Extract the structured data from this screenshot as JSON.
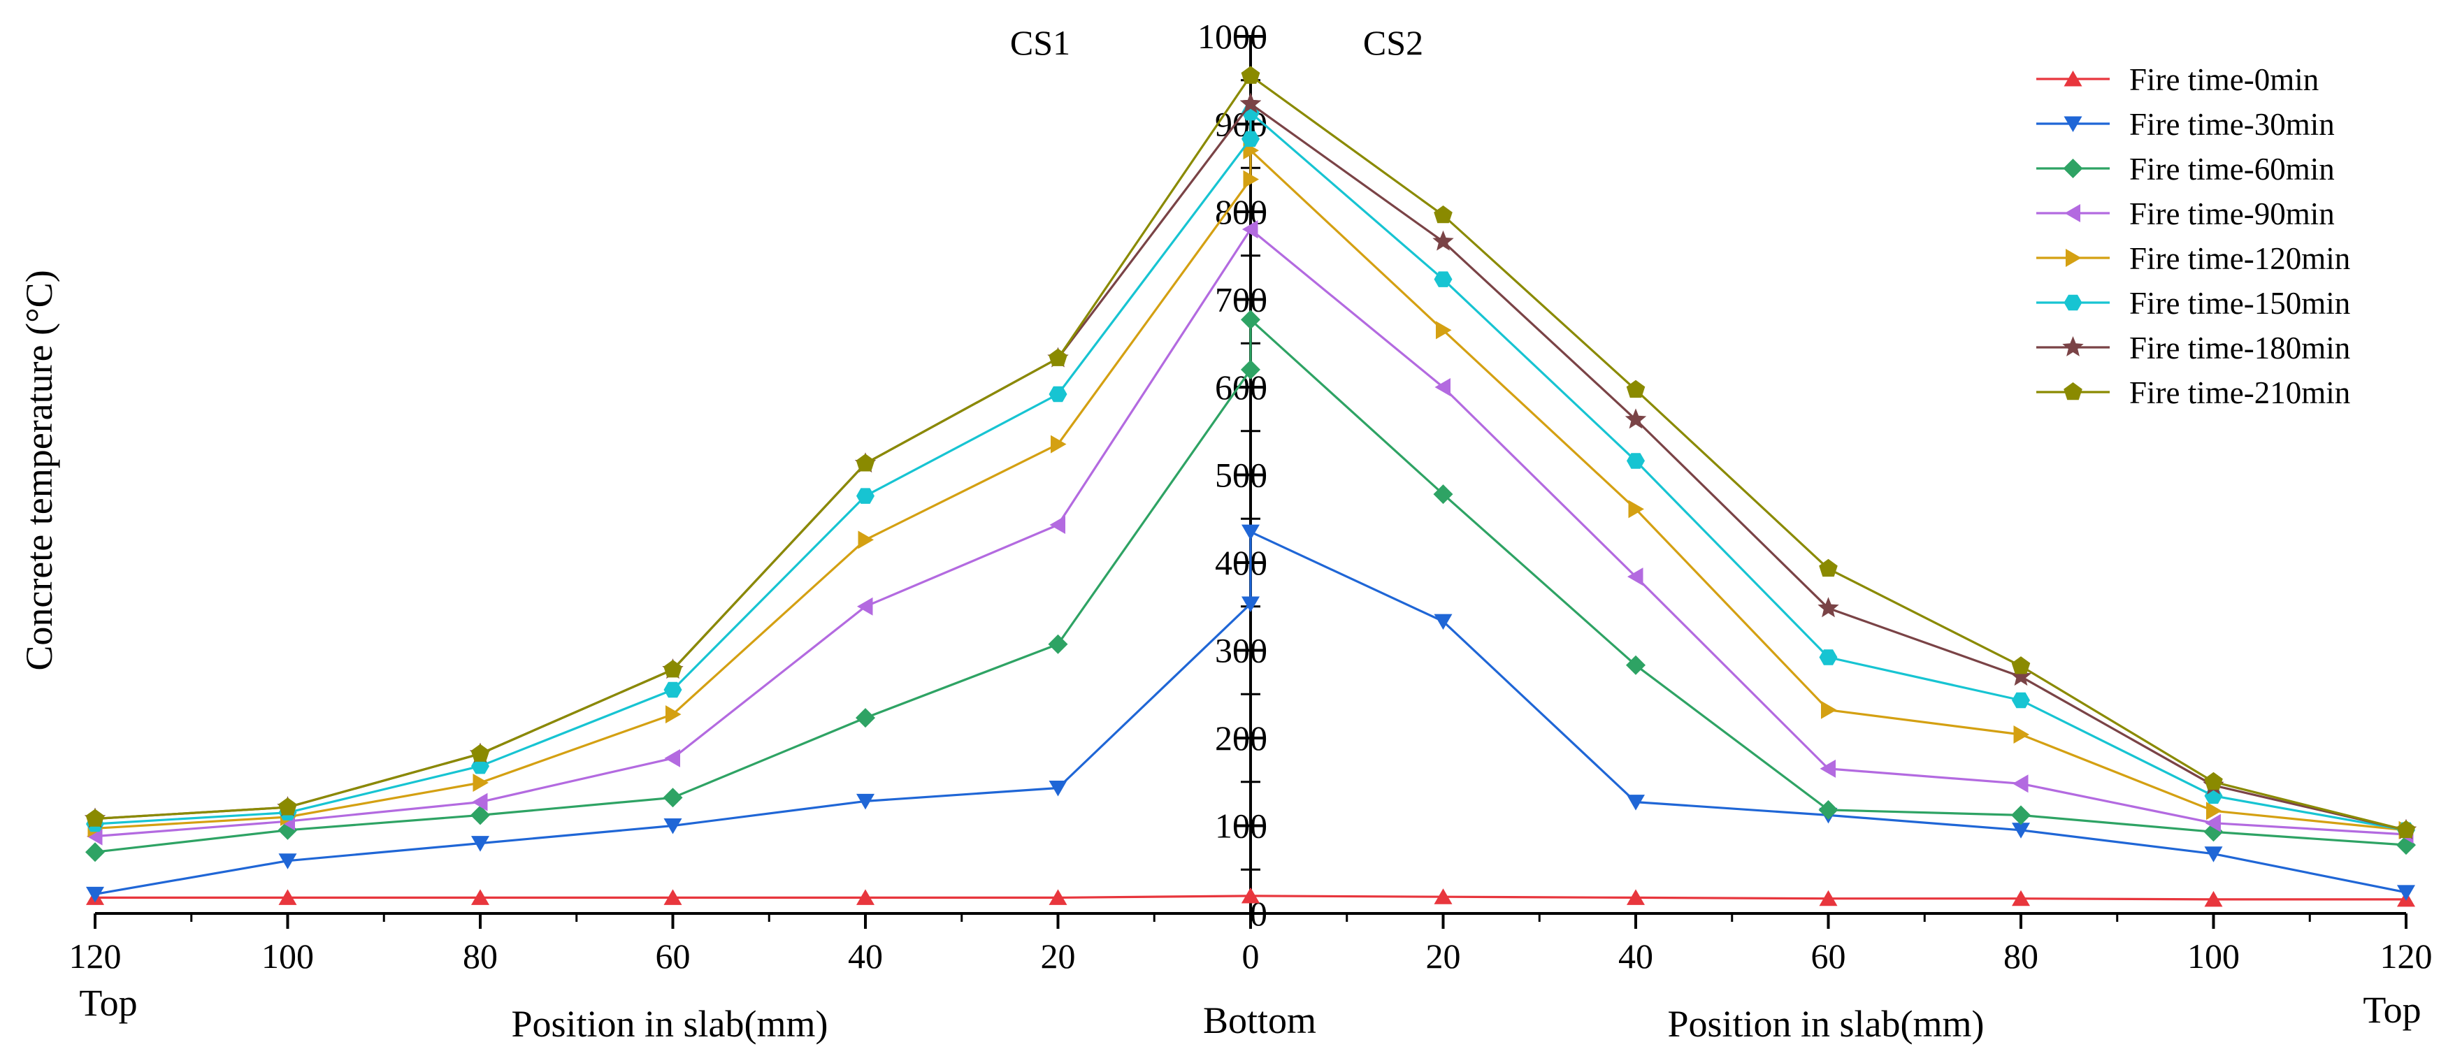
{
  "chart_data": {
    "type": "line",
    "ylabel": "Concrete temperature (°C)",
    "xlabel_left": "Position in slab(mm)",
    "xlabel_right": "Position in slab(mm)",
    "section_left": "CS1",
    "section_right": "CS2",
    "x_left_end_label": "Top",
    "x_center_label": "Bottom",
    "x_right_end_label": "Top",
    "ylim": [
      0,
      1000
    ],
    "y_ticks": [
      "0",
      "100",
      "200",
      "300",
      "400",
      "500",
      "600",
      "700",
      "800",
      "900",
      "1000"
    ],
    "x_ticks": [
      "120",
      "100",
      "80",
      "60",
      "40",
      "20",
      "0",
      "20",
      "40",
      "60",
      "80",
      "100",
      "120"
    ],
    "x": [
      -120,
      -100,
      -80,
      -60,
      -40,
      -20,
      0,
      20,
      40,
      60,
      80,
      100,
      120
    ],
    "series": [
      {
        "name": "Fire time-0min",
        "color": "#e8363d",
        "marker": "triangle-up",
        "cs1": [
          18,
          18,
          18,
          18,
          18,
          18,
          20
        ],
        "cs2": [
          20,
          19,
          18,
          17,
          17,
          16,
          16
        ]
      },
      {
        "name": "Fire time-30min",
        "color": "#1f66d6",
        "marker": "triangle-down",
        "cs1": [
          22,
          60,
          80,
          100,
          128,
          143,
          353
        ],
        "cs2": [
          435,
          333,
          127,
          112,
          95,
          68,
          24
        ]
      },
      {
        "name": "Fire time-60min",
        "color": "#2ea364",
        "marker": "diamond",
        "cs1": [
          70,
          95,
          112,
          132,
          223,
          307,
          620
        ],
        "cs2": [
          677,
          478,
          283,
          118,
          112,
          93,
          78
        ]
      },
      {
        "name": "Fire time-90min",
        "color": "#b36ae0",
        "marker": "triangle-left",
        "cs1": [
          88,
          105,
          127,
          177,
          350,
          443,
          780
        ],
        "cs2": [
          780,
          600,
          384,
          165,
          148,
          103,
          90
        ]
      },
      {
        "name": "Fire time-120min",
        "color": "#d4a012",
        "marker": "triangle-right",
        "cs1": [
          97,
          110,
          149,
          227,
          426,
          535,
          837
        ],
        "cs2": [
          870,
          665,
          461,
          232,
          204,
          117,
          95
        ]
      },
      {
        "name": "Fire time-150min",
        "color": "#17c4d2",
        "marker": "hexagon",
        "cs1": [
          102,
          115,
          168,
          255,
          476,
          592,
          883
        ],
        "cs2": [
          913,
          723,
          516,
          292,
          243,
          134,
          95
        ]
      },
      {
        "name": "Fire time-180min",
        "color": "#7a4346",
        "marker": "star",
        "cs1": [
          108,
          121,
          182,
          278,
          513,
          633,
          923
        ],
        "cs2": [
          923,
          766,
          563,
          348,
          270,
          146,
          95
        ]
      },
      {
        "name": "Fire time-210min",
        "color": "#8a8a00",
        "marker": "pentagon",
        "cs1": [
          108,
          121,
          182,
          278,
          513,
          633,
          955
        ],
        "cs2": [
          955,
          796,
          597,
          393,
          282,
          150,
          95
        ]
      }
    ]
  }
}
